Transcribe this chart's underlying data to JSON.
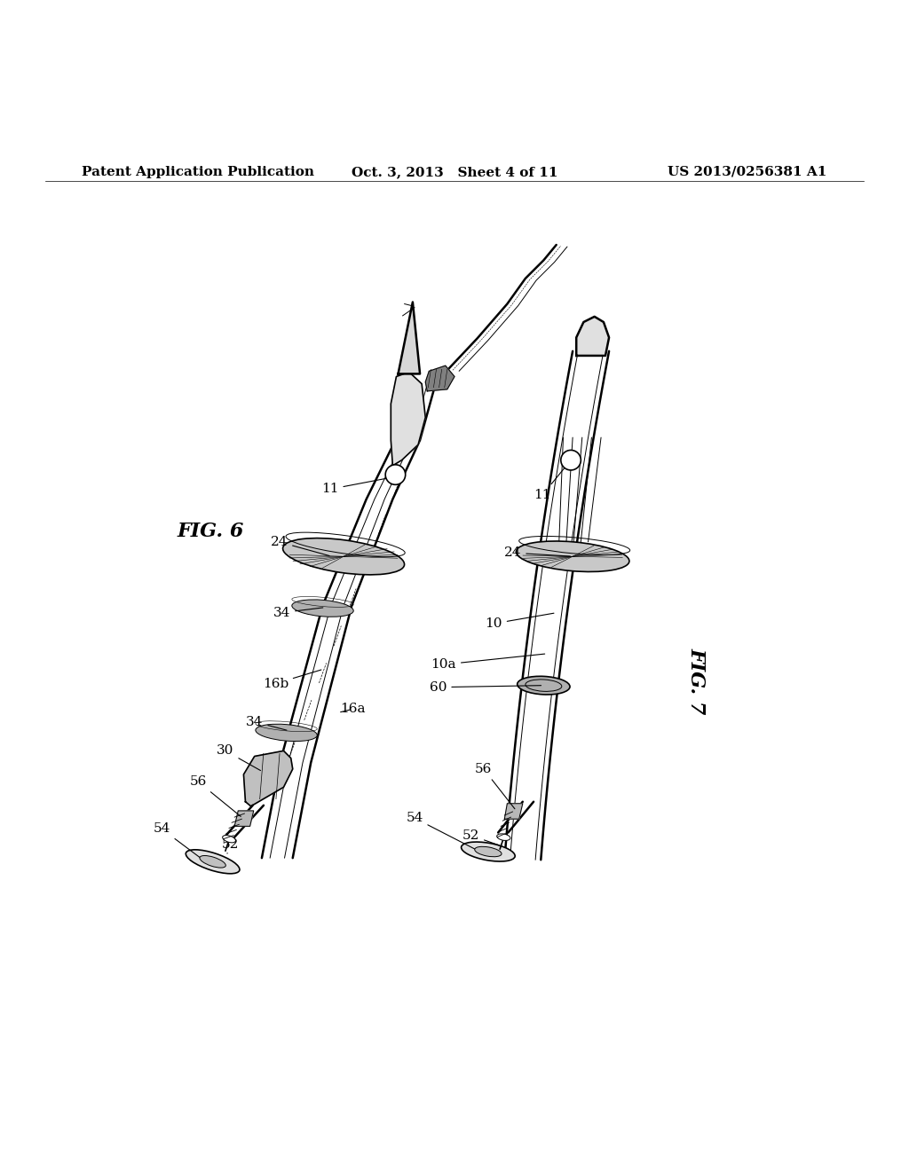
{
  "title_left": "Patent Application Publication",
  "title_center": "Oct. 3, 2013   Sheet 4 of 11",
  "title_right": "US 2013/0256381 A1",
  "fig6_label": "FIG. 6",
  "fig7_label": "FIG. 7",
  "bg_color": "#ffffff",
  "line_color": "#000000",
  "header_fontsize": 11,
  "fig_label_fontsize": 16,
  "ref_fontsize": 11
}
